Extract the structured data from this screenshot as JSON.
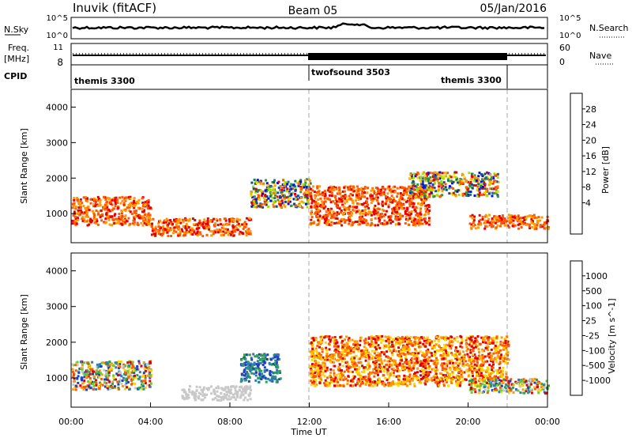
{
  "header": {
    "station": "Inuvik (fitACF)",
    "beam": "Beam 05",
    "date": "05/Jan/2016"
  },
  "strips": {
    "nsky_label": "N.Sky",
    "nsky_top": "10^5",
    "nsky_bottom": "10^0",
    "nsearch_label": "N.Search",
    "nsearch_top": "10^5",
    "nsearch_bottom": "10^0",
    "freq_label_1": "Freq.",
    "freq_label_2": "[MHz]",
    "freq_top": "11",
    "freq_bottom": "8",
    "nave_label": "Nave",
    "nave_top": "60",
    "nave_bottom": "0",
    "cpid_label": "CPID",
    "cpid_segments": [
      {
        "name": "themis 3300"
      },
      {
        "name": "twofsound 3503"
      },
      {
        "name": "themis 3300"
      }
    ]
  },
  "chart_data": [
    {
      "type": "heatmap",
      "title": "",
      "ylabel": "Slant Range [km]",
      "xlabel": "",
      "colorbar_label": "Power [dB]",
      "colorbar_ticks": [
        "28",
        "24",
        "20",
        "16",
        "12",
        "8",
        "4"
      ],
      "colorbar_colors": [
        "#e80000",
        "#ff5a00",
        "#ff9a00",
        "#ffd200",
        "#9ee000",
        "#2fa02f",
        "#1c7e6a",
        "#154a9a",
        "#0012e0"
      ],
      "ylim": [
        180,
        4500
      ],
      "yticks": [
        "4000",
        "3000",
        "2000",
        "1000"
      ],
      "xlim": [
        "00:00",
        "24:00"
      ],
      "regions": [
        {
          "x": [
            0.0,
            4.0
          ],
          "y": [
            700,
            1500
          ],
          "level": "high"
        },
        {
          "x": [
            4.0,
            9.0
          ],
          "y": [
            400,
            900
          ],
          "level": "high"
        },
        {
          "x": [
            9.0,
            12.0
          ],
          "y": [
            1200,
            2000
          ],
          "level": "mixed"
        },
        {
          "x": [
            12.0,
            18.0
          ],
          "y": [
            700,
            1800
          ],
          "level": "high"
        },
        {
          "x": [
            17.0,
            21.5
          ],
          "y": [
            1500,
            2200
          ],
          "level": "mixed"
        },
        {
          "x": [
            20.0,
            24.0
          ],
          "y": [
            600,
            1000
          ],
          "level": "high"
        }
      ]
    },
    {
      "type": "heatmap",
      "title": "",
      "ylabel": "Slant Range [km]",
      "xlabel": "Time UT",
      "colorbar_label": "Velocity [m s^-1]",
      "colorbar_ticks": [
        "1000",
        "500",
        "100",
        "25",
        "-25",
        "-100",
        "-500",
        "-1000"
      ],
      "colorbar_colors": [
        "#1f3fbf",
        "#2e7ab4",
        "#2f9f5a",
        "#66cc33",
        "#c8c8c8",
        "#ffd400",
        "#ff9a00",
        "#ff5a00",
        "#e00000"
      ],
      "ylim": [
        180,
        4500
      ],
      "yticks": [
        "4000",
        "3000",
        "2000",
        "1000"
      ],
      "xlim": [
        "00:00",
        "24:00"
      ],
      "xticks": [
        "00:00",
        "04:00",
        "08:00",
        "12:00",
        "16:00",
        "20:00",
        "00:00"
      ],
      "regions": [
        {
          "x": [
            0.0,
            4.0
          ],
          "y": [
            700,
            1500
          ],
          "level": "mixed"
        },
        {
          "x": [
            5.5,
            9.0
          ],
          "y": [
            400,
            800
          ],
          "level": "ground"
        },
        {
          "x": [
            8.5,
            10.5
          ],
          "y": [
            900,
            1700
          ],
          "level": "positive"
        },
        {
          "x": [
            12.0,
            22.0
          ],
          "y": [
            800,
            2200
          ],
          "level": "negative"
        },
        {
          "x": [
            20.0,
            24.0
          ],
          "y": [
            600,
            1000
          ],
          "level": "mixed"
        }
      ]
    }
  ]
}
